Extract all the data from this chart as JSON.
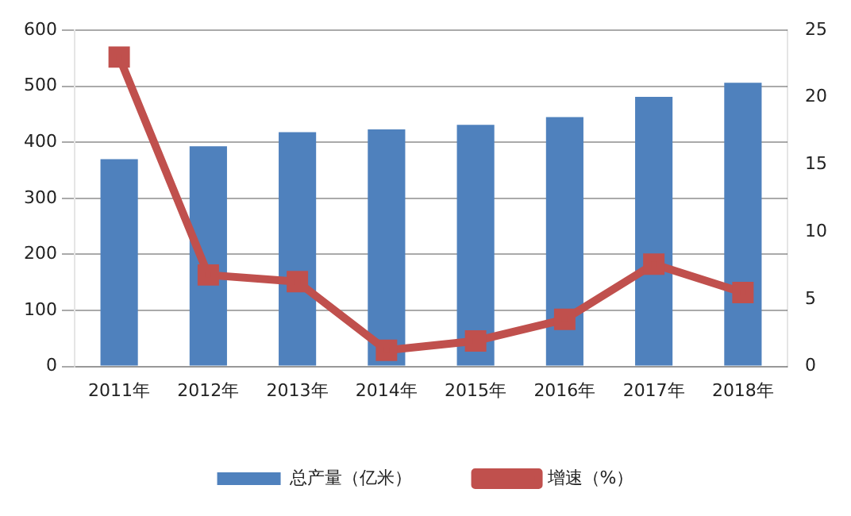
{
  "chart_data": {
    "type": "bar",
    "categories": [
      "2011年",
      "2012年",
      "2013年",
      "2014年",
      "2015年",
      "2016年",
      "2017年",
      "2018年"
    ],
    "series": [
      {
        "name": "总产量（亿米）",
        "color": "#4f81bd",
        "values": [
          370,
          393,
          418,
          423,
          431,
          445,
          481,
          506
        ]
      },
      {
        "name": "增速（%）",
        "type": "line",
        "axis": "y2",
        "color": "#c0504d",
        "marker": "square",
        "values": [
          23.0,
          6.8,
          6.3,
          1.2,
          1.9,
          3.5,
          7.6,
          5.5
        ]
      }
    ],
    "ylim": [
      0,
      600
    ],
    "yticks": [
      0,
      100,
      200,
      300,
      400,
      500,
      600
    ],
    "y2lim": [
      0,
      25
    ],
    "y2ticks": [
      0,
      5,
      10,
      15,
      20,
      25
    ],
    "grid": "y",
    "legend": "bottom"
  }
}
